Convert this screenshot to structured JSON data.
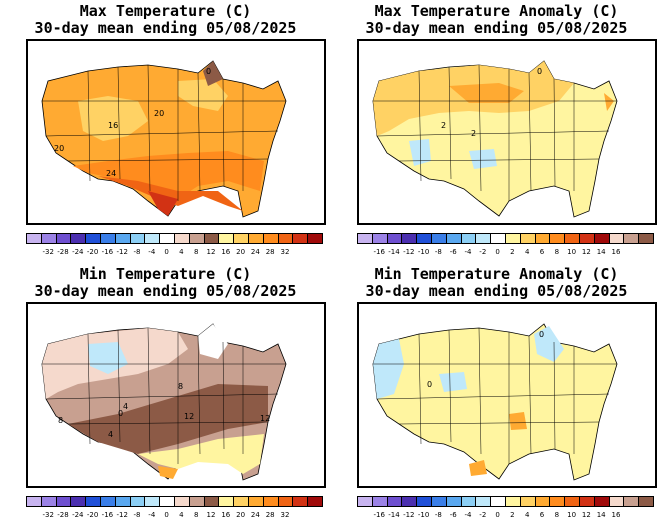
{
  "panels": [
    {
      "id": "max-temp",
      "title_line1": "Max Temperature (C)",
      "title_line2": "30-day mean ending 05/08/2025",
      "map_labels": [
        "0",
        "16",
        "20",
        "20",
        "24"
      ],
      "legend": {
        "colors": [
          "#c8b4f0",
          "#9b82e6",
          "#6e4fd0",
          "#4b2fb0",
          "#2050d8",
          "#3a7ee8",
          "#5aa8f0",
          "#8ccff5",
          "#bfe8fa",
          "#ffffff",
          "#f5d9cc",
          "#c8a090",
          "#8c5a46",
          "#fff5a0",
          "#ffd264",
          "#ffaa32",
          "#ff8c1e",
          "#f06414",
          "#d23214",
          "#a00a0a"
        ],
        "ticks": [
          "-32",
          "-28",
          "-24",
          "-20",
          "-16",
          "-12",
          "-8",
          "-4",
          "0",
          "4",
          "8",
          "12",
          "16",
          "20",
          "24",
          "28",
          "32"
        ]
      }
    },
    {
      "id": "max-temp-anomaly",
      "title_line1": "Max Temperature Anomaly (C)",
      "title_line2": "30-day mean ending 05/08/2025",
      "map_labels": [
        "0",
        "2",
        "2"
      ],
      "legend": {
        "colors": [
          "#c8b4f0",
          "#9b82e6",
          "#6e4fd0",
          "#4b2fb0",
          "#2050d8",
          "#3a7ee8",
          "#5aa8f0",
          "#8ccff5",
          "#bfe8fa",
          "#ffffff",
          "#fff5a0",
          "#ffd264",
          "#ffaa32",
          "#ff8c1e",
          "#f06414",
          "#d23214",
          "#a00a0a",
          "#f5d9cc",
          "#c8a090",
          "#8c5a46"
        ],
        "ticks": [
          "-16",
          "-14",
          "-12",
          "-10",
          "-8",
          "-6",
          "-4",
          "-2",
          "0",
          "2",
          "4",
          "6",
          "8",
          "10",
          "12",
          "14",
          "16"
        ]
      }
    },
    {
      "id": "min-temp",
      "title_line1": "Min Temperature (C)",
      "title_line2": "30-day mean ending 05/08/2025",
      "map_labels": [
        "8",
        "4",
        "8",
        "0",
        "12",
        "12",
        "4"
      ],
      "legend": {
        "colors": [
          "#c8b4f0",
          "#9b82e6",
          "#6e4fd0",
          "#4b2fb0",
          "#2050d8",
          "#3a7ee8",
          "#5aa8f0",
          "#8ccff5",
          "#bfe8fa",
          "#ffffff",
          "#f5d9cc",
          "#c8a090",
          "#8c5a46",
          "#fff5a0",
          "#ffd264",
          "#ffaa32",
          "#ff8c1e",
          "#f06414",
          "#d23214",
          "#a00a0a"
        ],
        "ticks": [
          "-32",
          "-28",
          "-24",
          "-20",
          "-16",
          "-12",
          "-8",
          "-4",
          "0",
          "4",
          "8",
          "12",
          "16",
          "20",
          "24",
          "28",
          "32"
        ]
      }
    },
    {
      "id": "min-temp-anomaly",
      "title_line1": "Min Temperature Anomaly (C)",
      "title_line2": "30-day mean ending 05/08/2025",
      "map_labels": [
        "0",
        "0"
      ],
      "legend": {
        "colors": [
          "#c8b4f0",
          "#9b82e6",
          "#6e4fd0",
          "#4b2fb0",
          "#2050d8",
          "#3a7ee8",
          "#5aa8f0",
          "#8ccff5",
          "#bfe8fa",
          "#ffffff",
          "#fff5a0",
          "#ffd264",
          "#ffaa32",
          "#ff8c1e",
          "#f06414",
          "#d23214",
          "#a00a0a",
          "#f5d9cc",
          "#c8a090",
          "#8c5a46"
        ],
        "ticks": [
          "-16",
          "-14",
          "-12",
          "-10",
          "-8",
          "-6",
          "-4",
          "-2",
          "0",
          "2",
          "4",
          "6",
          "8",
          "10",
          "12",
          "14",
          "16"
        ]
      }
    }
  ]
}
